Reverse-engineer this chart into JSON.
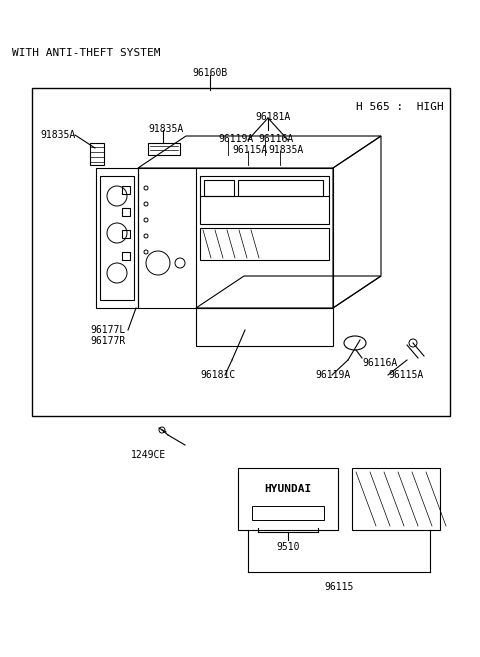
{
  "bg_color": "#ffffff",
  "border_color": "#000000",
  "title_text": "WITH ANTI-THEFT SYSTEM",
  "part_label_top": "96160B",
  "corner_label": "H 565 :  HIGH",
  "labels": {
    "91835A_left": "91835A",
    "91835A_mid": "91835A",
    "96181A": "96181A",
    "96119A_top": "96119A",
    "96116A_top": "96116A",
    "96115A_top": "96115A",
    "91835A_top2": "91835A",
    "96177L": "96177L",
    "96177R": "96177R",
    "96181C": "96181C",
    "96119A_bot": "96119A",
    "96116A_bot": "96116A",
    "96115A_bot": "96115A",
    "1249CE": "1249CE",
    "9510": "9510",
    "96115": "96115"
  },
  "font_size_labels": 7,
  "font_size_title": 8,
  "font_size_corner": 8
}
